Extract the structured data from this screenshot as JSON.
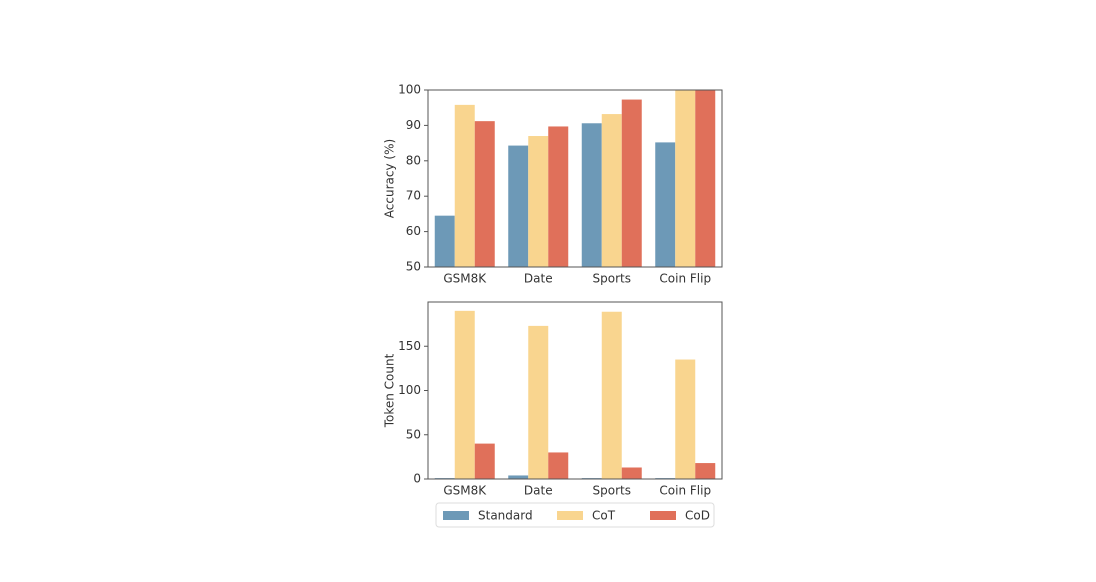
{
  "chart_data": [
    {
      "type": "bar",
      "ylabel": "Accuracy (%)",
      "categories": [
        "GSM8K",
        "Date",
        "Sports",
        "Coin Flip"
      ],
      "series": [
        {
          "color": "#6d99b7",
          "values": [
            64.5,
            84.3,
            90.6,
            85.2
          ]
        },
        {
          "color": "#f9d58f",
          "values": [
            95.8,
            87.0,
            93.2,
            100
          ]
        },
        {
          "color": "#e0705a",
          "values": [
            91.2,
            89.7,
            97.3,
            100
          ]
        }
      ],
      "ylim": [
        50,
        100
      ],
      "yticks": [
        50,
        60,
        70,
        80,
        90,
        100
      ]
    },
    {
      "type": "bar",
      "ylabel": "Token Count",
      "categories": [
        "GSM8K",
        "Date",
        "Sports",
        "Coin Flip"
      ],
      "series": [
        {
          "name": "Standard",
          "color": "#6d99b7",
          "values": [
            1,
            4,
            1,
            1
          ]
        },
        {
          "name": "CoT",
          "color": "#f9d58f",
          "values": [
            190,
            173,
            189,
            135
          ]
        },
        {
          "name": "CoD",
          "color": "#e0705a",
          "values": [
            40,
            30,
            13,
            18
          ]
        }
      ],
      "ylim": [
        0,
        200
      ],
      "yticks": [
        0,
        50,
        100,
        150
      ]
    }
  ]
}
